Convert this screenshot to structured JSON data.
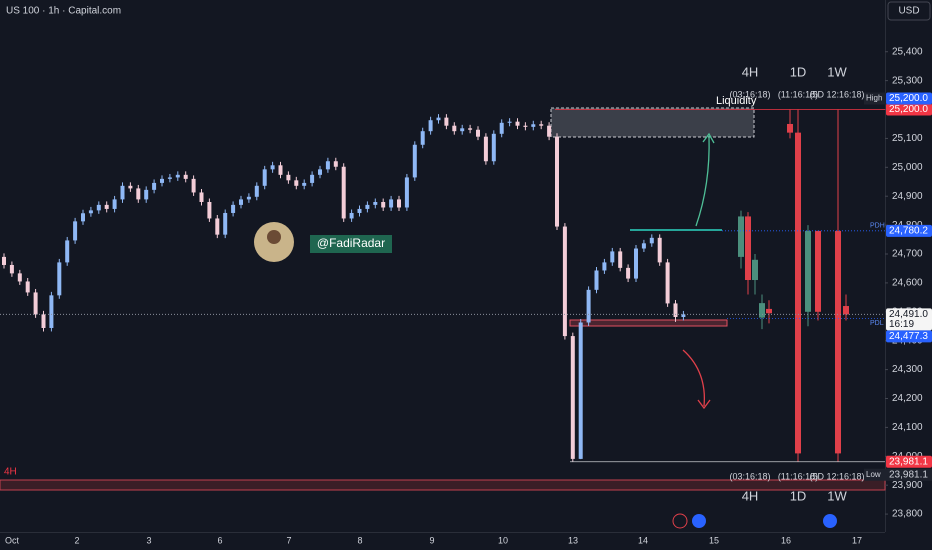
{
  "chart_data": {
    "type": "candlestick",
    "title": "US 100 · 1h · Capital.com",
    "currency": "USD",
    "author": "@FadiRadar",
    "zone_label": "Liquidity",
    "bottom_zone_label": "4H",
    "ylim": [
      23738,
      25579
    ],
    "yticks": [
      {
        "value": 23800,
        "label": "23,800"
      },
      {
        "value": 23900,
        "label": "23,900"
      },
      {
        "value": 24000,
        "label": "24,000"
      },
      {
        "value": 24100,
        "label": "24,100"
      },
      {
        "value": 24200,
        "label": "24,200"
      },
      {
        "value": 24300,
        "label": "24,300"
      },
      {
        "value": 24400,
        "label": "24,400"
      },
      {
        "value": 24500,
        "label": "24,500"
      },
      {
        "value": 24600,
        "label": "24,600"
      },
      {
        "value": 24700,
        "label": "24,700"
      },
      {
        "value": 24800,
        "label": "24,800"
      },
      {
        "value": 24900,
        "label": "24,900"
      },
      {
        "value": 25000,
        "label": "25,000"
      },
      {
        "value": 25100,
        "label": "25,100"
      },
      {
        "value": 25200,
        "label": "25,200"
      },
      {
        "value": 25300,
        "label": "25,300"
      },
      {
        "value": 25400,
        "label": "25,400"
      }
    ],
    "grid": false,
    "x_labels": [
      "Oct",
      "2",
      "3",
      "6",
      "7",
      "8",
      "9",
      "10",
      "13",
      "14",
      "15",
      "16",
      "17"
    ],
    "up_color": "#8fb8f5",
    "down_color": "#f3cdd8",
    "open": [
      24690,
      24662,
      24633,
      24605,
      24567,
      24491,
      24444,
      24557,
      24671,
      24747,
      24813,
      24841,
      24851,
      24870,
      24856,
      24889,
      24936,
      24927,
      24889,
      24922,
      24946,
      24960,
      24965,
      24974,
      24960,
      24913,
      24880,
      24823,
      24767,
      24842,
      24870,
      24889,
      24898,
      24936,
      24993,
      25007,
      24974,
      24955,
      24936,
      24946,
      24974,
      24993,
      25021,
      25002,
      24823,
      24842,
      24856,
      24870,
      24880,
      24861,
      24889,
      24861,
      24965,
      25078,
      25125,
      25163,
      25172,
      25144,
      25125,
      25135,
      25130,
      25106,
      25021,
      25116,
      25154,
      25158,
      25144,
      25140,
      25149,
      25144,
      25106,
      24795,
      24416,
      23991,
      24463,
      24576,
      24643,
      24671,
      24709,
      24652,
      24615,
      24719,
      24737,
      24756,
      24671,
      24529,
      24482
    ],
    "high": [
      24702,
      24674,
      24645,
      24617,
      24579,
      24503,
      24569,
      24683,
      24759,
      24825,
      24853,
      24863,
      24882,
      24882,
      24901,
      24948,
      24948,
      24939,
      24934,
      24958,
      24972,
      24977,
      24986,
      24986,
      24972,
      24925,
      24892,
      24835,
      24854,
      24882,
      24901,
      24910,
      24948,
      25005,
      25019,
      25019,
      24986,
      24967,
      24958,
      24986,
      25005,
      25033,
      25033,
      25014,
      24854,
      24868,
      24882,
      24892,
      24892,
      24901,
      24901,
      24977,
      25090,
      25137,
      25175,
      25184,
      25184,
      25156,
      25147,
      25147,
      25142,
      25118,
      25128,
      25166,
      25170,
      25170,
      25156,
      25161,
      25161,
      25156,
      25118,
      24807,
      24428,
      24475,
      24588,
      24655,
      24683,
      24721,
      24721,
      24664,
      24731,
      24749,
      24768,
      24768,
      24683,
      24541,
      24503
    ],
    "low": [
      24650,
      24621,
      24593,
      24555,
      24479,
      24432,
      24432,
      24545,
      24659,
      24735,
      24801,
      24829,
      24839,
      24844,
      24844,
      24877,
      24915,
      24877,
      24877,
      24910,
      24934,
      24948,
      24953,
      24948,
      24901,
      24868,
      24811,
      24755,
      24755,
      24830,
      24858,
      24877,
      24886,
      24924,
      24981,
      24962,
      24943,
      24924,
      24924,
      24934,
      24962,
      24981,
      24990,
      24811,
      24811,
      24830,
      24844,
      24858,
      24849,
      24849,
      24849,
      24849,
      24953,
      25066,
      25113,
      25151,
      25132,
      25113,
      25113,
      25118,
      25094,
      25009,
      25009,
      25104,
      25142,
      25132,
      25128,
      25128,
      25132,
      25094,
      24783,
      24404,
      23981,
      23990,
      24451,
      24564,
      24631,
      24659,
      24640,
      24603,
      24603,
      24707,
      24725,
      24659,
      24517,
      24465,
      24470
    ],
    "close": [
      24662,
      24633,
      24605,
      24567,
      24491,
      24444,
      24557,
      24671,
      24747,
      24813,
      24841,
      24851,
      24870,
      24856,
      24889,
      24936,
      24927,
      24889,
      24922,
      24946,
      24960,
      24965,
      24974,
      24960,
      24913,
      24880,
      24823,
      24767,
      24842,
      24870,
      24889,
      24898,
      24936,
      24993,
      25007,
      24974,
      24955,
      24936,
      24946,
      24974,
      24993,
      25021,
      25002,
      24823,
      24842,
      24856,
      24870,
      24880,
      24861,
      24889,
      24861,
      24965,
      25078,
      25125,
      25163,
      25172,
      25144,
      25125,
      25135,
      25130,
      25106,
      25021,
      25116,
      25154,
      25158,
      25144,
      25140,
      25149,
      25144,
      25106,
      24795,
      24416,
      23991,
      24463,
      24576,
      24643,
      24671,
      24709,
      24652,
      24615,
      24719,
      24737,
      24756,
      24671,
      24529,
      24482,
      24491
    ],
    "timeframes": [
      {
        "label": "4H",
        "countdown": "(03:16:18)",
        "open": [
          24690,
          24830,
          24610,
          24480,
          24510
        ],
        "high": [
          24850,
          24845,
          24700,
          24560,
          24540
        ],
        "low": [
          24650,
          24560,
          24560,
          24440,
          24460
        ],
        "close": [
          24830,
          24610,
          24680,
          24530,
          24495
        ]
      },
      {
        "label": "1D",
        "countdown": "(11:16:18)",
        "open": [
          25150,
          25120,
          24500,
          24780
        ],
        "high": [
          25200,
          25200,
          24800,
          24780
        ],
        "low": [
          25100,
          23981,
          24450,
          24470
        ],
        "close": [
          25120,
          24010,
          24780,
          24500
        ]
      },
      {
        "label": "1W",
        "countdown": "(5D 12:16:18)",
        "open": [
          24780,
          24520
        ],
        "high": [
          25200,
          24560
        ],
        "low": [
          23981,
          24470
        ],
        "close": [
          24010,
          24491
        ]
      }
    ],
    "htf_up_color": "#4b8f7d",
    "htf_down_color": "#e0404a",
    "levels": [
      {
        "name": "High",
        "value": 25200,
        "label": "25,200.0"
      },
      {
        "name": "PDH",
        "value": 24780.2,
        "label": "24,780.2"
      },
      {
        "name": "PDL",
        "value": 24477.3,
        "label": "24,477.3"
      },
      {
        "name": "Low",
        "value": 23981.1,
        "label": "23,981.1"
      }
    ],
    "last": {
      "value": 24491,
      "label": "24,491.0",
      "countdown": "16:19"
    }
  }
}
